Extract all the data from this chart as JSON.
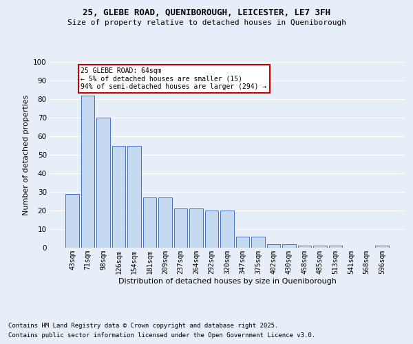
{
  "title_line1": "25, GLEBE ROAD, QUENIBOROUGH, LEICESTER, LE7 3FH",
  "title_line2": "Size of property relative to detached houses in Queniborough",
  "xlabel": "Distribution of detached houses by size in Queniborough",
  "ylabel": "Number of detached properties",
  "categories": [
    "43sqm",
    "71sqm",
    "98sqm",
    "126sqm",
    "154sqm",
    "181sqm",
    "209sqm",
    "237sqm",
    "264sqm",
    "292sqm",
    "320sqm",
    "347sqm",
    "375sqm",
    "402sqm",
    "430sqm",
    "458sqm",
    "485sqm",
    "513sqm",
    "541sqm",
    "568sqm",
    "596sqm"
  ],
  "values": [
    29,
    82,
    70,
    55,
    55,
    27,
    27,
    21,
    21,
    20,
    20,
    6,
    6,
    2,
    2,
    1,
    1,
    1,
    0,
    0,
    1
  ],
  "bar_color": "#c5d9f1",
  "bar_edge_color": "#4472c4",
  "ylim": [
    0,
    100
  ],
  "yticks": [
    0,
    10,
    20,
    30,
    40,
    50,
    60,
    70,
    80,
    90,
    100
  ],
  "annotation_title": "25 GLEBE ROAD: 64sqm",
  "annotation_line1": "← 5% of detached houses are smaller (15)",
  "annotation_line2": "94% of semi-detached houses are larger (294) →",
  "footnote1": "Contains HM Land Registry data © Crown copyright and database right 2025.",
  "footnote2": "Contains public sector information licensed under the Open Government Licence v3.0.",
  "bg_color": "#e8eef8",
  "plot_bg_color": "#e8eef8",
  "annotation_box_color": "#ffffff",
  "annotation_box_edge": "#cc0000",
  "grid_color": "#ffffff"
}
